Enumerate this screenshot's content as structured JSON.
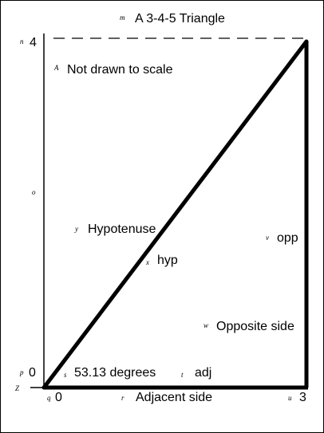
{
  "title": "A 3-4-5 Triangle",
  "note": "Not drawn to scale",
  "axis": {
    "y_tick_top": "4",
    "y_tick_bottom": "0",
    "x_tick_left": "0",
    "x_tick_right": "3"
  },
  "labels": {
    "hypotenuse": "Hypotenuse",
    "hyp": "hyp",
    "opp": "opp",
    "opposite_side": "Opposite side",
    "angle": "53.13 degrees",
    "adj": "adj",
    "adjacent_side": "Adjacent side"
  },
  "tags": {
    "title": "m",
    "y_top": "n",
    "note": "A",
    "y_mid": "o",
    "hypotenuse": "y",
    "hyp": "x",
    "opp": "v",
    "opposite_side": "w",
    "y_bottom": "p",
    "angle": "s",
    "adj": "t",
    "origin": "Z",
    "x_left": "q",
    "adjacent_side": "r",
    "x_right": "u"
  },
  "triangle": {
    "adjacent": 3,
    "opposite": 4,
    "hypotenuse": 5,
    "angle_degrees": 53.13
  }
}
